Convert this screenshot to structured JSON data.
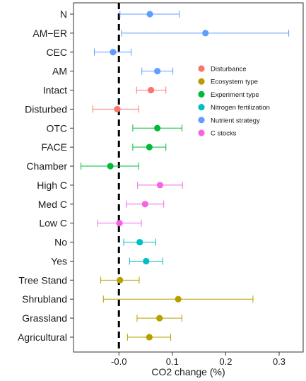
{
  "chart_data": {
    "type": "scatter",
    "subtype": "forest-plot",
    "xlabel": "CO2 change (%)",
    "xlim": [
      -0.085,
      0.345
    ],
    "x_ticks": [
      -0.0,
      0.1,
      0.2,
      0.3
    ],
    "x_tick_labels": [
      "-0.0",
      "0.1",
      "0.2",
      "0.3"
    ],
    "reference_line": {
      "x": 0,
      "style": "dashed",
      "color": "#000000"
    },
    "grid": false,
    "legend_placement": "right-middle",
    "groups": [
      {
        "name": "Disturbance",
        "color": "#F8766D"
      },
      {
        "name": "Ecosystem type",
        "color": "#B79F00"
      },
      {
        "name": "Experiment type",
        "color": "#00BA38"
      },
      {
        "name": "Nitrogen fertilization",
        "color": "#00BFC4"
      },
      {
        "name": "Nutrient strategy",
        "color": "#619CFF"
      },
      {
        "name": "C stocks",
        "color": "#F564E3"
      }
    ],
    "rows": [
      {
        "label": "N",
        "group": "Nutrient strategy",
        "estimate": 0.058,
        "lower": 0.002,
        "upper": 0.113
      },
      {
        "label": "AM−ER",
        "group": "Nutrient strategy",
        "estimate": 0.162,
        "lower": 0.005,
        "upper": 0.318
      },
      {
        "label": "CEC",
        "group": "Nutrient strategy",
        "estimate": -0.011,
        "lower": -0.046,
        "upper": 0.023
      },
      {
        "label": "AM",
        "group": "Nutrient strategy",
        "estimate": 0.072,
        "lower": 0.043,
        "upper": 0.101
      },
      {
        "label": "Intact",
        "group": "Disturbance",
        "estimate": 0.06,
        "lower": 0.033,
        "upper": 0.088
      },
      {
        "label": "Disturbed",
        "group": "Disturbance",
        "estimate": -0.003,
        "lower": -0.049,
        "upper": 0.037
      },
      {
        "label": "OTC",
        "group": "Experiment type",
        "estimate": 0.072,
        "lower": 0.026,
        "upper": 0.118
      },
      {
        "label": "FACE",
        "group": "Experiment type",
        "estimate": 0.057,
        "lower": 0.026,
        "upper": 0.088
      },
      {
        "label": "Chamber",
        "group": "Experiment type",
        "estimate": -0.016,
        "lower": -0.071,
        "upper": 0.037
      },
      {
        "label": "High C",
        "group": "C stocks",
        "estimate": 0.077,
        "lower": 0.035,
        "upper": 0.119
      },
      {
        "label": "Med C",
        "group": "C stocks",
        "estimate": 0.049,
        "lower": 0.014,
        "upper": 0.084
      },
      {
        "label": "Low C",
        "group": "C stocks",
        "estimate": 0.001,
        "lower": -0.04,
        "upper": 0.042
      },
      {
        "label": "No",
        "group": "Nitrogen fertilization",
        "estimate": 0.039,
        "lower": 0.009,
        "upper": 0.069
      },
      {
        "label": "Yes",
        "group": "Nitrogen fertilization",
        "estimate": 0.051,
        "lower": 0.02,
        "upper": 0.082
      },
      {
        "label": "Tree Stand",
        "group": "Ecosystem type",
        "estimate": 0.002,
        "lower": -0.034,
        "upper": 0.038
      },
      {
        "label": "Shrubland",
        "group": "Ecosystem type",
        "estimate": 0.111,
        "lower": -0.029,
        "upper": 0.251
      },
      {
        "label": "Grassland",
        "group": "Ecosystem type",
        "estimate": 0.076,
        "lower": 0.034,
        "upper": 0.118
      },
      {
        "label": "Agricultural",
        "group": "Ecosystem type",
        "estimate": 0.057,
        "lower": 0.016,
        "upper": 0.097
      }
    ]
  }
}
